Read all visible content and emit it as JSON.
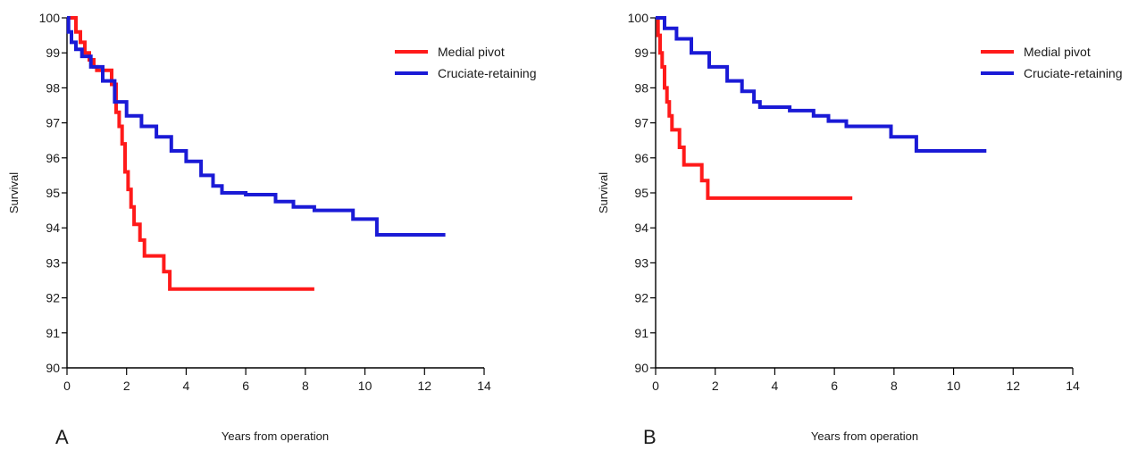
{
  "colors": {
    "medial_pivot": "#ff1a1a",
    "cruciate_retaining": "#1a1ad6"
  },
  "chart_data": [
    {
      "type": "line",
      "panel_label": "A",
      "title": "",
      "xlabel": "Years from operation",
      "ylabel": "Survival",
      "xlim": [
        0,
        14
      ],
      "ylim": [
        90,
        100
      ],
      "xticks": [
        "0",
        "2",
        "4",
        "6",
        "8",
        "10",
        "12",
        "14"
      ],
      "yticks": [
        "90",
        "91",
        "92",
        "93",
        "94",
        "95",
        "96",
        "97",
        "98",
        "99",
        "100"
      ],
      "grid": false,
      "step": true,
      "legend_position": "top-right",
      "series": [
        {
          "name": "Medial pivot",
          "color": "#ff1a1a",
          "x": [
            0,
            0.3,
            0.45,
            0.6,
            0.75,
            0.9,
            1.0,
            1.5,
            1.65,
            1.75,
            1.85,
            1.95,
            2.05,
            2.15,
            2.25,
            2.45,
            2.6,
            2.75,
            3.25,
            3.45,
            8.3
          ],
          "y": [
            100,
            99.6,
            99.3,
            99.0,
            98.8,
            98.6,
            98.5,
            98.1,
            97.3,
            96.9,
            96.4,
            95.6,
            95.1,
            94.6,
            94.1,
            93.65,
            93.2,
            93.2,
            92.75,
            92.25,
            92.25
          ]
        },
        {
          "name": "Cruciate-retaining",
          "color": "#1a1ad6",
          "x": [
            0,
            0.05,
            0.15,
            0.3,
            0.5,
            0.8,
            1.2,
            1.6,
            2.0,
            2.5,
            3.0,
            3.5,
            4.0,
            4.5,
            4.9,
            5.2,
            6.0,
            7.0,
            7.6,
            8.3,
            9.6,
            10.4,
            12.7
          ],
          "y": [
            100,
            99.6,
            99.3,
            99.1,
            98.9,
            98.6,
            98.2,
            97.6,
            97.2,
            96.9,
            96.6,
            96.2,
            95.9,
            95.5,
            95.2,
            95.0,
            94.95,
            94.75,
            94.6,
            94.5,
            94.25,
            93.8,
            93.8
          ]
        }
      ]
    },
    {
      "type": "line",
      "panel_label": "B",
      "title": "",
      "xlabel": "Years from operation",
      "ylabel": "Survival",
      "xlim": [
        0,
        14
      ],
      "ylim": [
        90,
        100
      ],
      "xticks": [
        "0",
        "2",
        "4",
        "6",
        "8",
        "10",
        "12",
        "14"
      ],
      "yticks": [
        "90",
        "91",
        "92",
        "93",
        "94",
        "95",
        "96",
        "97",
        "98",
        "99",
        "100"
      ],
      "grid": false,
      "step": true,
      "legend_position": "top-right",
      "series": [
        {
          "name": "Medial pivot",
          "color": "#ff1a1a",
          "x": [
            0,
            0.08,
            0.15,
            0.22,
            0.3,
            0.38,
            0.46,
            0.55,
            0.8,
            0.95,
            1.55,
            1.75,
            6.6
          ],
          "y": [
            100,
            99.5,
            99.0,
            98.6,
            98.0,
            97.6,
            97.2,
            96.8,
            96.3,
            95.8,
            95.35,
            94.85,
            94.85
          ]
        },
        {
          "name": "Cruciate-retaining",
          "color": "#1a1ad6",
          "x": [
            0,
            0.3,
            0.7,
            1.2,
            1.8,
            2.4,
            2.9,
            3.3,
            3.5,
            4.5,
            5.3,
            5.8,
            6.4,
            7.9,
            8.75,
            11.1
          ],
          "y": [
            100,
            99.7,
            99.4,
            99.0,
            98.6,
            98.2,
            97.9,
            97.6,
            97.45,
            97.35,
            97.2,
            97.05,
            96.9,
            96.6,
            96.2,
            96.2
          ]
        }
      ]
    }
  ]
}
